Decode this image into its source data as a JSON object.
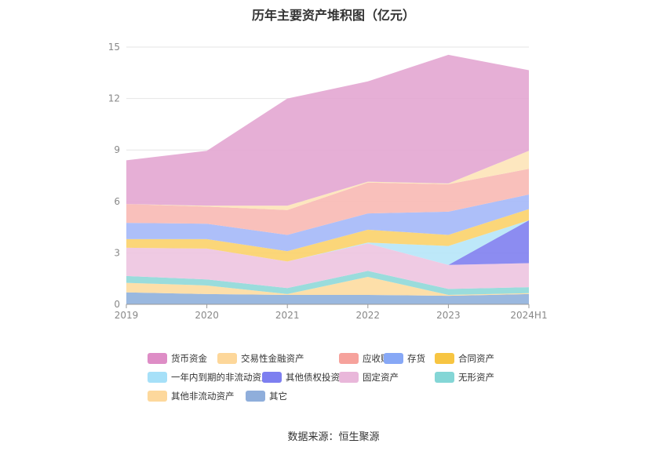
{
  "title": "历年主要资产堆积图（亿元）",
  "source": "数据来源：恒生聚源",
  "chart_data": {
    "type": "area",
    "stacked": true,
    "categories": [
      "2019",
      "2020",
      "2021",
      "2022",
      "2023",
      "2024H1"
    ],
    "ylim": [
      0,
      15
    ],
    "yticks": [
      0,
      3,
      6,
      9,
      12,
      15
    ],
    "legend_position": "bottom",
    "series": [
      {
        "name": "其它",
        "color": "#8fb0dc",
        "values": [
          0.7,
          0.6,
          0.55,
          0.55,
          0.5,
          0.6
        ]
      },
      {
        "name": "其他非流动资产",
        "color": "#fddba0",
        "values": [
          0.55,
          0.5,
          0.05,
          1.05,
          0.05,
          0.05
        ]
      },
      {
        "name": "无形资产",
        "color": "#8fd8d8",
        "values": [
          0.4,
          0.35,
          0.35,
          0.35,
          0.35,
          0.35
        ]
      },
      {
        "name": "固定资产",
        "color": "#edc4e0",
        "values": [
          1.65,
          1.8,
          1.55,
          1.6,
          1.4,
          1.4
        ]
      },
      {
        "name": "其他债权投资合计",
        "color": "#8080f0",
        "values": [
          0,
          0,
          0,
          0,
          0,
          2.5
        ]
      },
      {
        "name": "一年内到期的非流动资产",
        "color": "#b6e5f8",
        "values": [
          0,
          0,
          0,
          0.05,
          1.1,
          0
        ]
      },
      {
        "name": "合同资产",
        "color": "#fbd26a",
        "values": [
          0.5,
          0.55,
          0.6,
          0.75,
          0.65,
          0.65
        ]
      },
      {
        "name": "存货",
        "color": "#a4b8f8",
        "values": [
          0.95,
          0.9,
          0.95,
          0.95,
          1.35,
          0.85
        ]
      },
      {
        "name": "应收账款",
        "color": "#f8b9b4",
        "values": [
          1.1,
          1.0,
          1.45,
          1.8,
          1.6,
          1.5
        ]
      },
      {
        "name": "交易性金融资产",
        "color": "#fde4b8",
        "values": [
          0,
          0.05,
          0.25,
          0.05,
          0.05,
          1.05
        ]
      },
      {
        "name": "货币资金",
        "color": "#e3a6d2",
        "values": [
          2.55,
          3.2,
          6.25,
          5.85,
          7.5,
          4.7
        ]
      }
    ],
    "legend_order": [
      "货币资金",
      "交易性金融资产",
      "应收账款",
      "存货",
      "合同资产",
      "一年内到期的非流动资产",
      "其他债权投资合计",
      "固定资产",
      "无形资产",
      "其他非流动资产",
      "其它"
    ],
    "legend_colors": {
      "货币资金": "#de8dc6",
      "交易性金融资产": "#fdd79a",
      "应收账款": "#f6a29c",
      "存货": "#87a8f6",
      "合同资产": "#f7c542",
      "一年内到期的非流动资产": "#a6e0f8",
      "其他债权投资合计": "#7d7ff0",
      "固定资产": "#e9b7da",
      "无形资产": "#84d6d6",
      "其他非流动资产": "#fdd89c",
      "其它": "#8faedb"
    }
  }
}
